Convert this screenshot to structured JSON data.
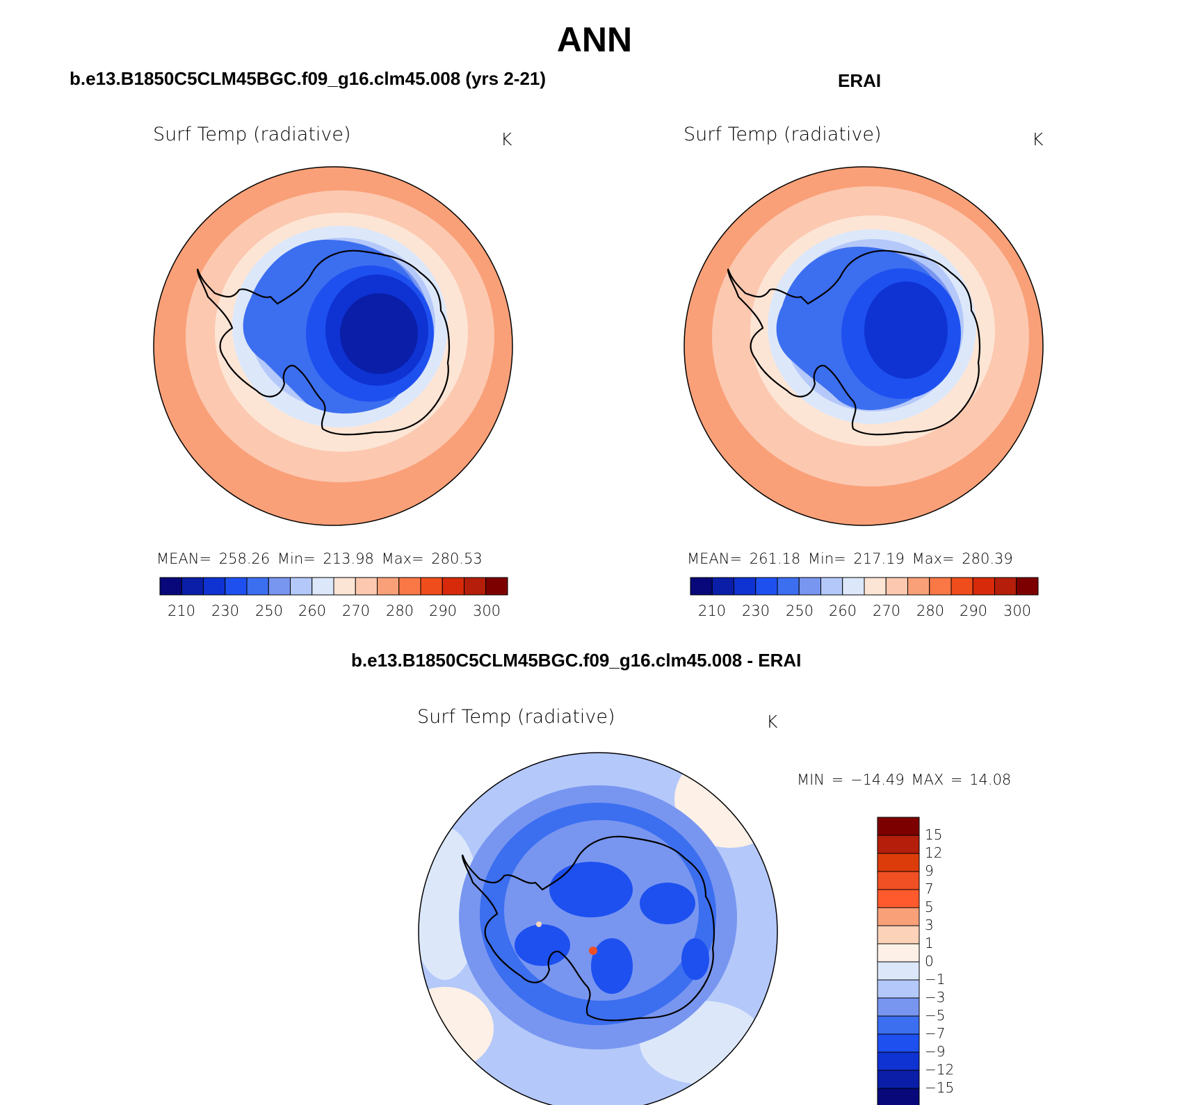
{
  "figure": {
    "title": "ANN",
    "panels": [
      {
        "header": "b.e13.B1850C5CLM45BGC.f09_g16.clm45.008 (yrs 2-21)",
        "variable": "Surf Temp (radiative)",
        "units": "K",
        "stats": "MEAN= 258.26 Min= 213.98 Max= 280.53",
        "colorbar_labels": [
          "210",
          "230",
          "250",
          "260",
          "270",
          "280",
          "290",
          "300"
        ]
      },
      {
        "header": "ERAI",
        "variable": "Surf Temp (radiative)",
        "units": "K",
        "stats": "MEAN= 261.18 Min= 217.19 Max= 280.39",
        "colorbar_labels": [
          "210",
          "230",
          "250",
          "260",
          "270",
          "280",
          "290",
          "300"
        ]
      },
      {
        "header": "b.e13.B1850C5CLM45BGC.f09_g16.clm45.008 - ERAI",
        "variable": "Surf Temp (radiative)",
        "units": "K",
        "stats": "MIN = −14.49 MAX = 14.08",
        "colorbar_labels": [
          "15",
          "12",
          "9",
          "7",
          "5",
          "3",
          "1",
          "0",
          "−1",
          "−3",
          "−5",
          "−7",
          "−9",
          "−12",
          "−15"
        ]
      }
    ]
  },
  "colors": {
    "abs_scale": [
      "#08087a",
      "#0a1ea8",
      "#0f32d2",
      "#1e50f0",
      "#3c6ef0",
      "#7896f0",
      "#b4c8fa",
      "#dce8fa",
      "#fde5d5",
      "#fcc8b0",
      "#f9a078",
      "#f97846",
      "#f04d1c",
      "#d72a0a",
      "#b41e0a",
      "#7d0000"
    ],
    "diff_scale": [
      "#7d0000",
      "#b41e0a",
      "#dc3c0a",
      "#f05023",
      "#ff5a2d",
      "#f9a078",
      "#fcd2b9",
      "#fdf0e6",
      "#dce8fa",
      "#b4c8fa",
      "#7896f0",
      "#3c6ef0",
      "#1e50f0",
      "#0f32d2",
      "#0a1ea8",
      "#08087a"
    ]
  }
}
